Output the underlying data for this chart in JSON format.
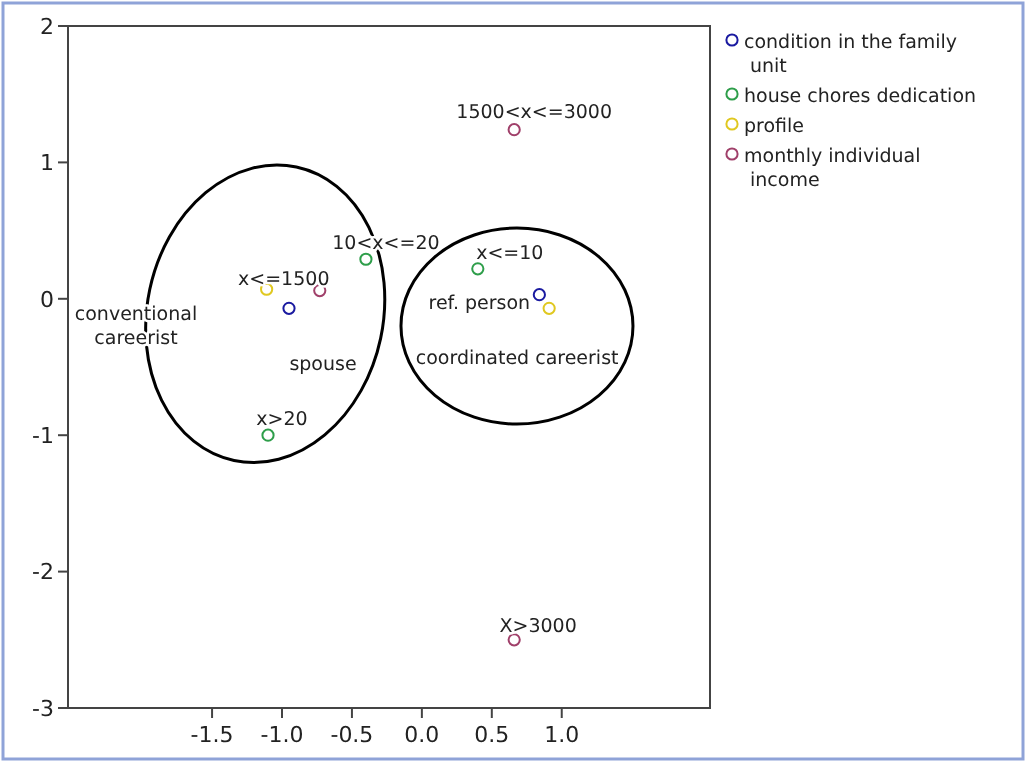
{
  "chart_data": {
    "type": "scatter",
    "xlim": [
      -2.53,
      2.06
    ],
    "ylim": [
      -3,
      2
    ],
    "xticks": [
      -1.5,
      {
        "value": -1,
        "label": "-1.0"
      },
      -0.5,
      {
        "value": 0,
        "label": "0.0"
      },
      0.5,
      {
        "value": 1,
        "label": "1.0"
      }
    ],
    "yticks": [
      -3,
      -2,
      -1,
      0,
      1,
      2
    ],
    "grid": false,
    "legend": "right",
    "marker": "circle",
    "series": [
      {
        "name": "condition in the family unit",
        "color": "#1a1aa0",
        "x": [
          -0.95,
          0.84
        ],
        "values": [
          -0.07,
          0.03
        ]
      },
      {
        "name": "house chores dedication",
        "color": "#2e9e4a",
        "x": [
          -0.4,
          0.4,
          -1.1
        ],
        "values": [
          0.29,
          0.22,
          -1.0
        ]
      },
      {
        "name": "profile",
        "color": "#e0c820",
        "x": [
          -1.11,
          0.91
        ],
        "values": [
          0.07,
          -0.07
        ]
      },
      {
        "name": "monthly individual income",
        "color": "#a0406a",
        "x": [
          0.66,
          -0.73,
          0.66
        ],
        "values": [
          1.24,
          0.06,
          -2.5
        ]
      }
    ],
    "annotations": [
      {
        "text": "1500<x<=3000",
        "x": 0.66,
        "y": 1.24
      },
      {
        "text": "10<x<=20",
        "x": -0.4,
        "y": 0.29
      },
      {
        "text": "x<=1500",
        "x": -0.73,
        "y": 0.06
      },
      "conventional careerist",
      {
        "text": "spouse",
        "x": -0.95,
        "y": -0.07
      },
      {
        "text": "x<=10",
        "x": 0.4,
        "y": 0.22
      },
      {
        "text": "ref. person",
        "x": 0.84,
        "y": 0.03
      },
      {
        "text": "coordinated careerist",
        "x": 0.91,
        "y": -0.07
      },
      {
        "text": "x>20",
        "x": -1.1,
        "y": -1.0
      },
      {
        "text": "X>3000",
        "x": 0.66,
        "y": -2.5
      }
    ]
  }
}
